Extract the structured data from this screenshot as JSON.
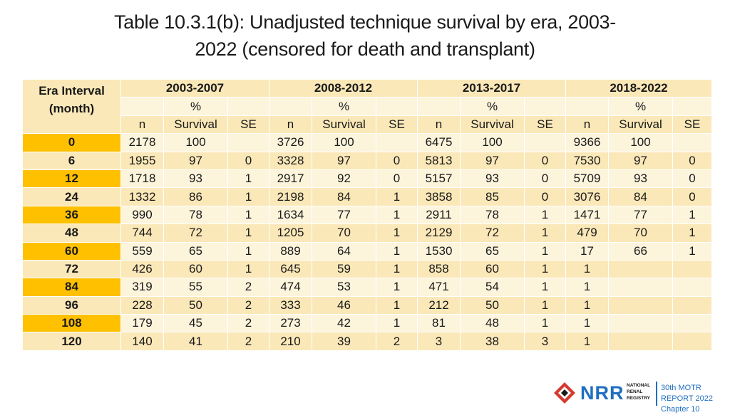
{
  "title": {
    "line1": "Table 10.3.1(b): Unadjusted technique survival by era, 2003-",
    "line2": "2022 (censored for death and transplant)"
  },
  "table": {
    "era_label_line1": "Era Interval",
    "era_label_line2": "(month)",
    "groups": [
      "2003-2007",
      "2008-2012",
      "2013-2017",
      "2018-2022"
    ],
    "percent_label": "%",
    "col_n": "n",
    "col_survival": "Survival",
    "col_se": "SE",
    "rows": [
      {
        "era": "0",
        "cells": [
          "2178",
          "100",
          "",
          "3726",
          "100",
          "",
          "6475",
          "100",
          "",
          "9366",
          "100",
          ""
        ]
      },
      {
        "era": "6",
        "cells": [
          "1955",
          "97",
          "0",
          "3328",
          "97",
          "0",
          "5813",
          "97",
          "0",
          "7530",
          "97",
          "0"
        ]
      },
      {
        "era": "12",
        "cells": [
          "1718",
          "93",
          "1",
          "2917",
          "92",
          "0",
          "5157",
          "93",
          "0",
          "5709",
          "93",
          "0"
        ]
      },
      {
        "era": "24",
        "cells": [
          "1332",
          "86",
          "1",
          "2198",
          "84",
          "1",
          "3858",
          "85",
          "0",
          "3076",
          "84",
          "0"
        ]
      },
      {
        "era": "36",
        "cells": [
          "990",
          "78",
          "1",
          "1634",
          "77",
          "1",
          "2911",
          "78",
          "1",
          "1471",
          "77",
          "1"
        ]
      },
      {
        "era": "48",
        "cells": [
          "744",
          "72",
          "1",
          "1205",
          "70",
          "1",
          "2129",
          "72",
          "1",
          "479",
          "70",
          "1"
        ]
      },
      {
        "era": "60",
        "cells": [
          "559",
          "65",
          "1",
          "889",
          "64",
          "1",
          "1530",
          "65",
          "1",
          "17",
          "66",
          "1"
        ]
      },
      {
        "era": "72",
        "cells": [
          "426",
          "60",
          "1",
          "645",
          "59",
          "1",
          "858",
          "60",
          "1",
          "1",
          "",
          ""
        ]
      },
      {
        "era": "84",
        "cells": [
          "319",
          "55",
          "2",
          "474",
          "53",
          "1",
          "471",
          "54",
          "1",
          "1",
          "",
          ""
        ]
      },
      {
        "era": "96",
        "cells": [
          "228",
          "50",
          "2",
          "333",
          "46",
          "1",
          "212",
          "50",
          "1",
          "1",
          "",
          ""
        ]
      },
      {
        "era": "108",
        "cells": [
          "179",
          "45",
          "2",
          "273",
          "42",
          "1",
          "81",
          "48",
          "1",
          "1",
          "",
          ""
        ]
      },
      {
        "era": "120",
        "cells": [
          "140",
          "41",
          "2",
          "210",
          "39",
          "2",
          "3",
          "38",
          "3",
          "1",
          "",
          ""
        ]
      }
    ]
  },
  "footer": {
    "brand": "NRR",
    "brand_sub": [
      "NATIONAL",
      "RENAL",
      "REGISTRY"
    ],
    "report_line1": "30th MOTR REPORT 2022",
    "report_line2": "Chapter 10",
    "colors": {
      "brand": "#1f6fbf",
      "mark": "#d63a2f",
      "header": "#ffc000"
    }
  }
}
